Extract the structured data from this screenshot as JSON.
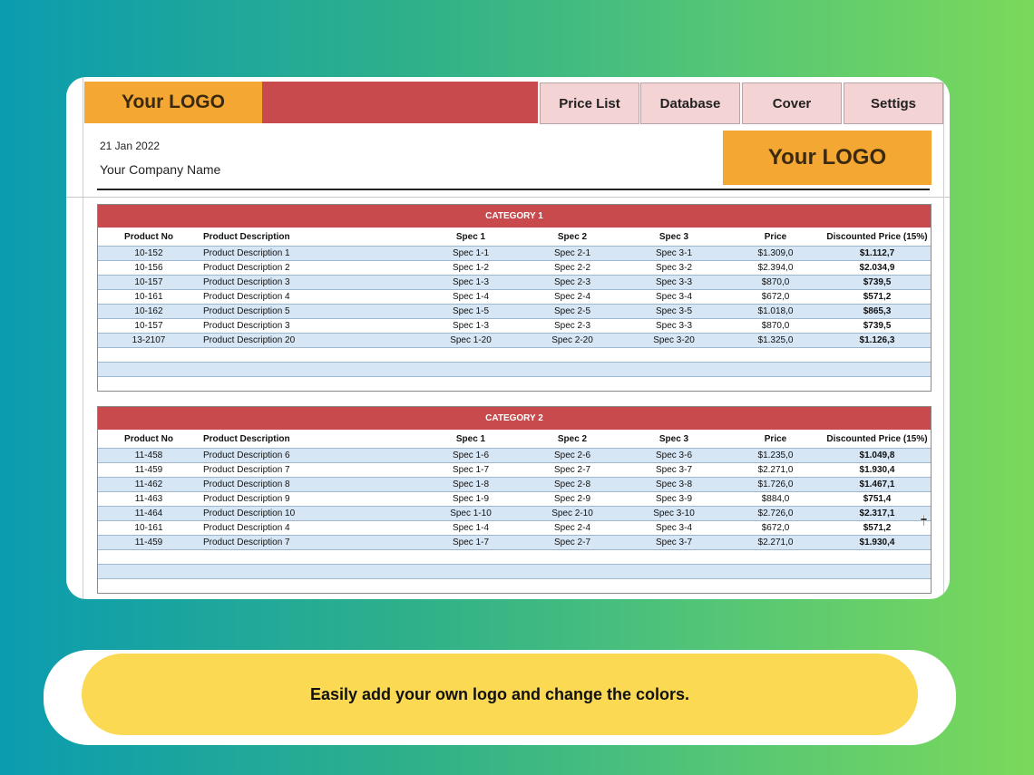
{
  "topbar": {
    "logo_label": "Your LOGO",
    "tabs": [
      "Price List",
      "Database",
      "Cover",
      "Settigs"
    ]
  },
  "header": {
    "date": "21 Jan 2022",
    "company": "Your Company Name",
    "logo_label": "Your LOGO"
  },
  "columns": [
    "Product No",
    "Product Description",
    "Spec 1",
    "Spec 2",
    "Spec 3",
    "Price",
    "Discounted Price (15%)"
  ],
  "categories": [
    {
      "title": "CATEGORY 1",
      "rows": [
        [
          "10-152",
          "Product Description 1",
          "Spec 1-1",
          "Spec 2-1",
          "Spec 3-1",
          "$1.309,0",
          "$1.112,7"
        ],
        [
          "10-156",
          "Product Description 2",
          "Spec 1-2",
          "Spec 2-2",
          "Spec 3-2",
          "$2.394,0",
          "$2.034,9"
        ],
        [
          "10-157",
          "Product Description 3",
          "Spec 1-3",
          "Spec 2-3",
          "Spec 3-3",
          "$870,0",
          "$739,5"
        ],
        [
          "10-161",
          "Product Description 4",
          "Spec 1-4",
          "Spec 2-4",
          "Spec 3-4",
          "$672,0",
          "$571,2"
        ],
        [
          "10-162",
          "Product Description 5",
          "Spec 1-5",
          "Spec 2-5",
          "Spec 3-5",
          "$1.018,0",
          "$865,3"
        ],
        [
          "10-157",
          "Product Description 3",
          "Spec 1-3",
          "Spec 2-3",
          "Spec 3-3",
          "$870,0",
          "$739,5"
        ],
        [
          "13-2107",
          "Product Description 20",
          "Spec 1-20",
          "Spec 2-20",
          "Spec 3-20",
          "$1.325,0",
          "$1.126,3"
        ]
      ]
    },
    {
      "title": "CATEGORY 2",
      "rows": [
        [
          "11-458",
          "Product Description 6",
          "Spec 1-6",
          "Spec 2-6",
          "Spec 3-6",
          "$1.235,0",
          "$1.049,8"
        ],
        [
          "11-459",
          "Product Description 7",
          "Spec 1-7",
          "Spec 2-7",
          "Spec 3-7",
          "$2.271,0",
          "$1.930,4"
        ],
        [
          "11-462",
          "Product Description 8",
          "Spec 1-8",
          "Spec 2-8",
          "Spec 3-8",
          "$1.726,0",
          "$1.467,1"
        ],
        [
          "11-463",
          "Product Description 9",
          "Spec 1-9",
          "Spec 2-9",
          "Spec 3-9",
          "$884,0",
          "$751,4"
        ],
        [
          "11-464",
          "Product Description 10",
          "Spec 1-10",
          "Spec 2-10",
          "Spec 3-10",
          "$2.726,0",
          "$2.317,1"
        ],
        [
          "10-161",
          "Product Description 4",
          "Spec 1-4",
          "Spec 2-4",
          "Spec 3-4",
          "$672,0",
          "$571,2"
        ],
        [
          "11-459",
          "Product Description 7",
          "Spec 1-7",
          "Spec 2-7",
          "Spec 3-7",
          "$2.271,0",
          "$1.930,4"
        ]
      ]
    }
  ],
  "banner": {
    "text": "Easily add your own logo and change the colors."
  },
  "colors": {
    "accent_red": "#c94a4d",
    "logo_orange": "#f4a833",
    "row_shade": "#d6e6f5",
    "banner_yellow": "#fbd953"
  }
}
